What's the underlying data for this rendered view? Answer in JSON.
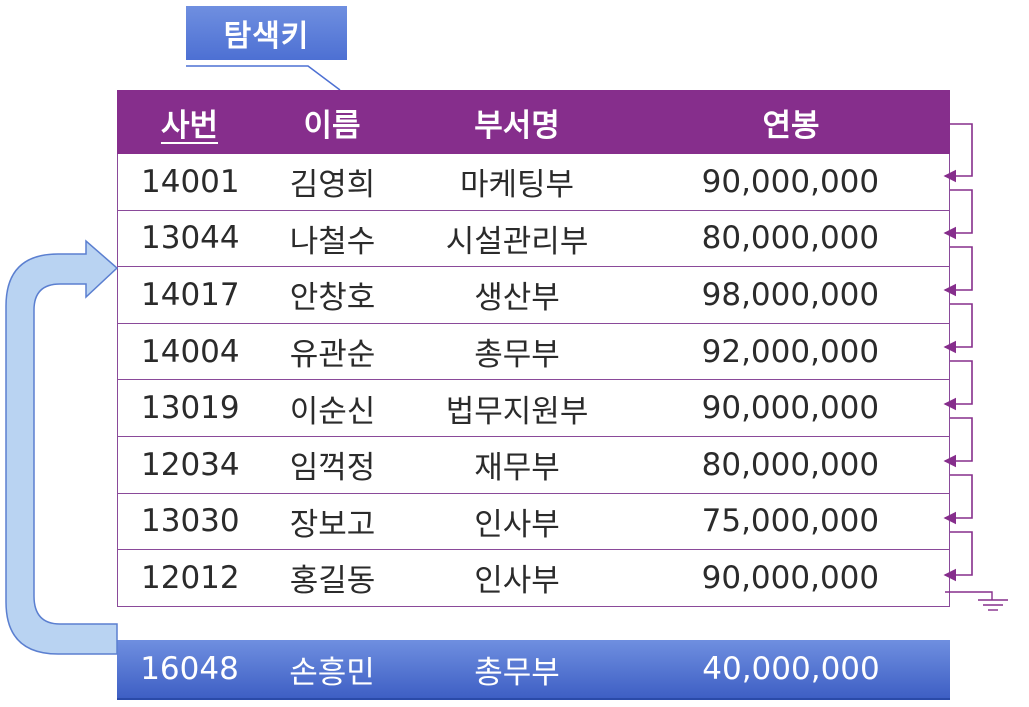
{
  "callout": {
    "label": "탐색키"
  },
  "table": {
    "headers": [
      "사번",
      "이름",
      "부서명",
      "연봉"
    ],
    "rows": [
      [
        "14001",
        "김영희",
        "마케팅부",
        "90,000,000"
      ],
      [
        "13044",
        "나철수",
        "시설관리부",
        "80,000,000"
      ],
      [
        "14017",
        "안창호",
        "생산부",
        "98,000,000"
      ],
      [
        "14004",
        "유관순",
        "총무부",
        "92,000,000"
      ],
      [
        "13019",
        "이순신",
        "법무지원부",
        "90,000,000"
      ],
      [
        "12034",
        "임꺽정",
        "재무부",
        "80,000,000"
      ],
      [
        "13030",
        "장보고",
        "인사부",
        "75,000,000"
      ],
      [
        "12012",
        "홍길동",
        "인사부",
        "90,000,000"
      ]
    ]
  },
  "new_record": [
    "16048",
    "손흥민",
    "총무부",
    "40,000,000"
  ],
  "colors": {
    "header_bg": "#862e8c",
    "new_record_bg": "#4d70d3",
    "pointer_line": "#862e8c",
    "insert_arrow": "#a9c8ee"
  }
}
